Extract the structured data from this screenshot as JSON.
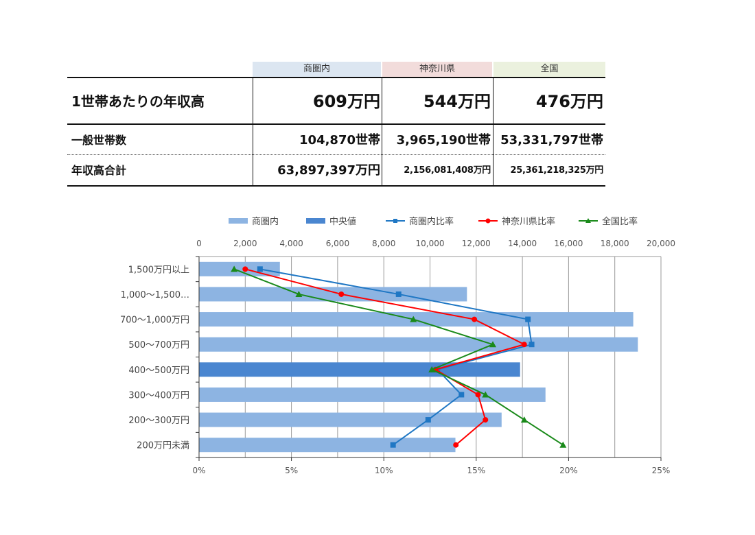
{
  "table": {
    "headers": [
      {
        "label": "商圏内",
        "color": "#dce6f1"
      },
      {
        "label": "神奈川県",
        "color": "#f2dcdb"
      },
      {
        "label": "全国",
        "color": "#ebf1de"
      }
    ],
    "rows": [
      {
        "label": "1世帯あたりの年収高",
        "values": [
          "609万円",
          "544万円",
          "476万円"
        ]
      },
      {
        "label": "一般世帯数",
        "values": [
          "104,870世帯",
          "3,965,190世帯",
          "53,331,797世帯"
        ]
      },
      {
        "label": "年収高合計",
        "values": [
          "63,897,397万円",
          "2,156,081,408万円",
          "25,361,218,325万円"
        ]
      }
    ]
  },
  "chart_data": {
    "type": "bar",
    "orientation": "horizontal",
    "categories": [
      "1,500万円以上",
      "1,000～1,500…",
      "700～1,000万円",
      "500～700万円",
      "400～500万円",
      "300～400万円",
      "200～300万円",
      "200万円未満"
    ],
    "x_top": {
      "min": 0,
      "max": 20000,
      "ticks": [
        "0",
        "2,000",
        "4,000",
        "6,000",
        "8,000",
        "10,000",
        "12,000",
        "14,000",
        "16,000",
        "18,000",
        "20,000"
      ]
    },
    "x_bottom": {
      "min": 0,
      "max": 25,
      "ticks": [
        "0%",
        "5%",
        "10%",
        "15%",
        "20%",
        "25%"
      ]
    },
    "grid": true,
    "legend_position": "top",
    "series": [
      {
        "name": "商圏内",
        "kind": "bar",
        "axis": "top",
        "color": "#8db4e2",
        "values": [
          3500,
          11600,
          18800,
          19000,
          null,
          15000,
          13100,
          11100
        ]
      },
      {
        "name": "中央値",
        "kind": "bar",
        "axis": "top",
        "color": "#4a86d0",
        "values": [
          null,
          null,
          null,
          null,
          13900,
          null,
          null,
          null
        ]
      },
      {
        "name": "商圏内比率",
        "kind": "line",
        "axis": "bottom",
        "color": "#1f77c4",
        "marker": "square",
        "values": [
          3.3,
          10.8,
          17.8,
          18.0,
          12.9,
          14.2,
          12.4,
          10.5
        ]
      },
      {
        "name": "神奈川県比率",
        "kind": "line",
        "axis": "bottom",
        "color": "#ff0000",
        "marker": "circle",
        "values": [
          2.5,
          7.7,
          14.9,
          17.6,
          12.8,
          15.1,
          15.5,
          13.9
        ]
      },
      {
        "name": "全国比率",
        "kind": "line",
        "axis": "bottom",
        "color": "#1a8a1a",
        "marker": "triangle",
        "values": [
          1.9,
          5.4,
          11.6,
          15.9,
          12.6,
          15.5,
          17.6,
          19.7
        ]
      }
    ]
  }
}
